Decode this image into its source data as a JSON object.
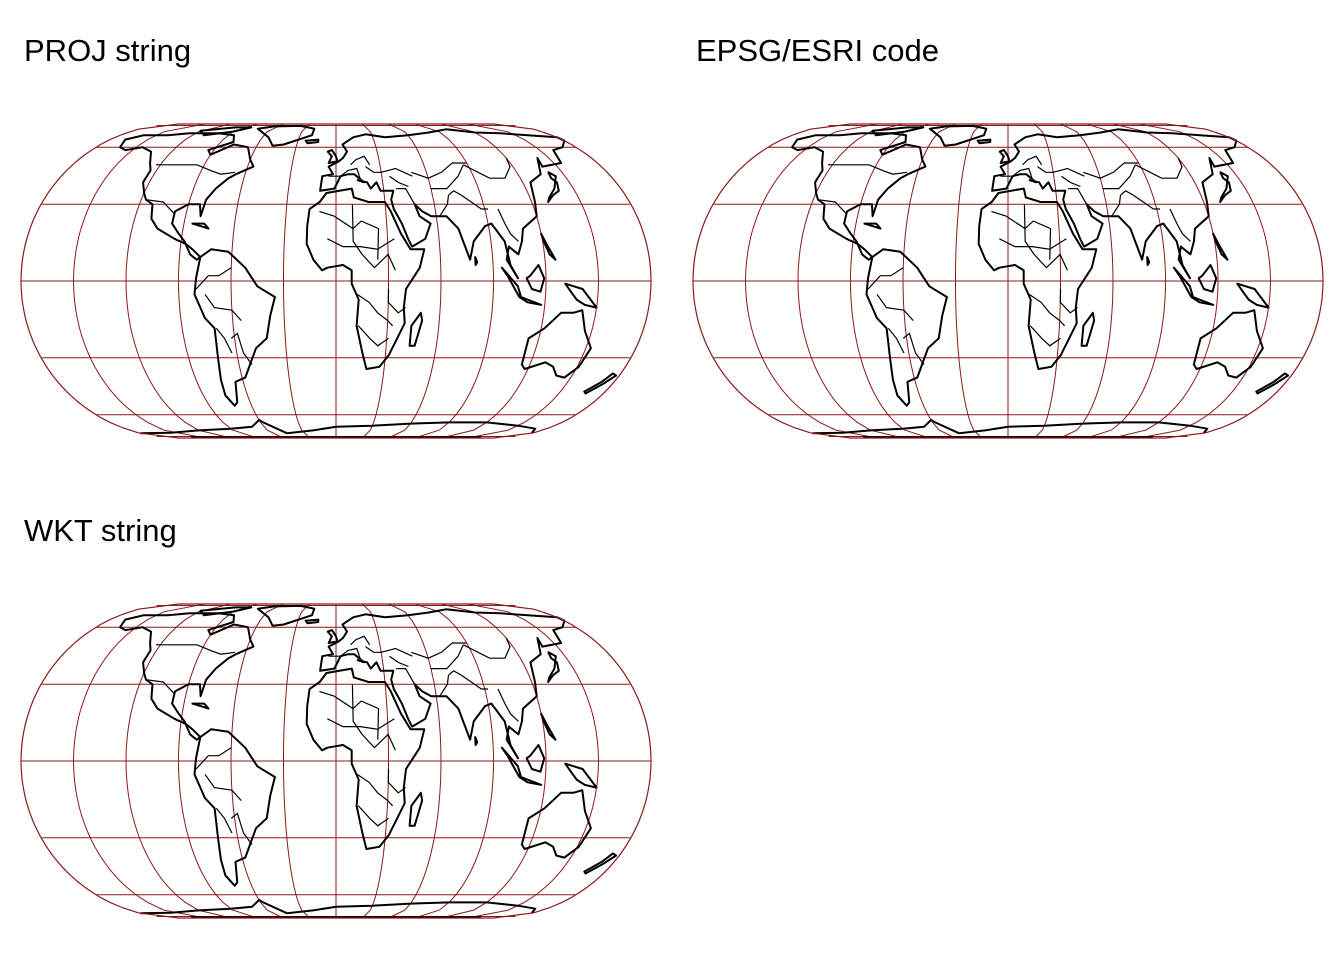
{
  "panels": [
    {
      "title": "PROJ string"
    },
    {
      "title": "EPSG/ESRI code"
    },
    {
      "title": "WKT string"
    }
  ],
  "map": {
    "projection": "Eckert IV",
    "graticule_meridian_step_deg": 30,
    "graticule_parallel_step_deg": 30,
    "colors": {
      "graticule": "#8b1a1a",
      "coastline": "#000000",
      "background": "#ffffff"
    }
  }
}
